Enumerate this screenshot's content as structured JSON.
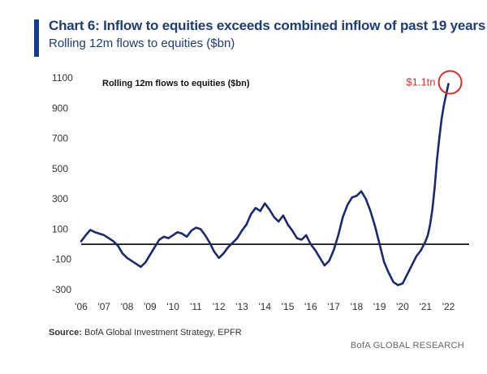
{
  "header": {
    "title": "Chart 6: Inflow to equities exceeds combined inflow of past 19 years",
    "subtitle": "Rolling 12m flows to equities ($bn)"
  },
  "footer": {
    "source_label": "Source:",
    "source_text": "BofA Global Investment Strategy, EPFR",
    "brand": "BofA GLOBAL RESEARCH"
  },
  "colors": {
    "accent": "#0b3d91",
    "line": "#1a2a6c",
    "annotation": "#d32f2f"
  },
  "chart_data": {
    "type": "line",
    "title": "Rolling 12m flows to equities ($bn)",
    "xlabel": "",
    "ylabel": "",
    "ylim": [
      -300,
      1100
    ],
    "xlim": [
      2006,
      2022.9
    ],
    "yticks": [
      "1100",
      "900",
      "700",
      "500",
      "300",
      "100",
      "-100",
      "-300"
    ],
    "ytick_values": [
      1100,
      900,
      700,
      500,
      300,
      100,
      -100,
      -300
    ],
    "xticks": [
      "'06",
      "'07",
      "'08",
      "'09",
      "'10",
      "'11",
      "'12",
      "'13",
      "'14",
      "'15",
      "'16",
      "'17",
      "'18",
      "'19",
      "'20",
      "'21",
      "'22"
    ],
    "xtick_values": [
      2006,
      2007,
      2008,
      2009,
      2010,
      2011,
      2012,
      2013,
      2014,
      2015,
      2016,
      2017,
      2018,
      2019,
      2020,
      2021,
      2022
    ],
    "zero_line": 0,
    "annotation": {
      "label": "$1.1tn",
      "x": 2022.0,
      "y": 1060
    },
    "series": [
      {
        "name": "Rolling 12m flows to equities ($bn)",
        "x": [
          2006.0,
          2006.2,
          2006.4,
          2006.6,
          2006.8,
          2007.0,
          2007.2,
          2007.4,
          2007.6,
          2007.8,
          2008.0,
          2008.2,
          2008.4,
          2008.6,
          2008.8,
          2009.0,
          2009.2,
          2009.4,
          2009.6,
          2009.8,
          2010.0,
          2010.2,
          2010.4,
          2010.6,
          2010.8,
          2011.0,
          2011.2,
          2011.4,
          2011.6,
          2011.8,
          2012.0,
          2012.2,
          2012.4,
          2012.6,
          2012.8,
          2013.0,
          2013.2,
          2013.4,
          2013.6,
          2013.8,
          2014.0,
          2014.2,
          2014.4,
          2014.6,
          2014.8,
          2015.0,
          2015.2,
          2015.4,
          2015.6,
          2015.8,
          2016.0,
          2016.2,
          2016.4,
          2016.6,
          2016.8,
          2017.0,
          2017.2,
          2017.4,
          2017.6,
          2017.8,
          2018.0,
          2018.2,
          2018.4,
          2018.6,
          2018.8,
          2019.0,
          2019.2,
          2019.4,
          2019.6,
          2019.8,
          2020.0,
          2020.2,
          2020.4,
          2020.6,
          2020.8,
          2021.0,
          2021.1,
          2021.2,
          2021.3,
          2021.4,
          2021.5,
          2021.6,
          2021.7,
          2021.8,
          2021.9,
          2022.0
        ],
        "values": [
          20,
          60,
          95,
          80,
          70,
          60,
          40,
          20,
          -10,
          -60,
          -90,
          -110,
          -130,
          -150,
          -120,
          -70,
          -20,
          30,
          50,
          40,
          60,
          80,
          70,
          50,
          90,
          110,
          100,
          60,
          10,
          -50,
          -90,
          -60,
          -20,
          10,
          40,
          90,
          130,
          200,
          240,
          220,
          270,
          230,
          180,
          150,
          190,
          130,
          90,
          40,
          30,
          60,
          0,
          -40,
          -90,
          -140,
          -110,
          -40,
          60,
          180,
          260,
          310,
          320,
          350,
          300,
          220,
          120,
          0,
          -120,
          -190,
          -250,
          -270,
          -260,
          -200,
          -140,
          -80,
          -40,
          20,
          60,
          130,
          230,
          380,
          560,
          700,
          830,
          920,
          990,
          1060
        ]
      }
    ]
  }
}
